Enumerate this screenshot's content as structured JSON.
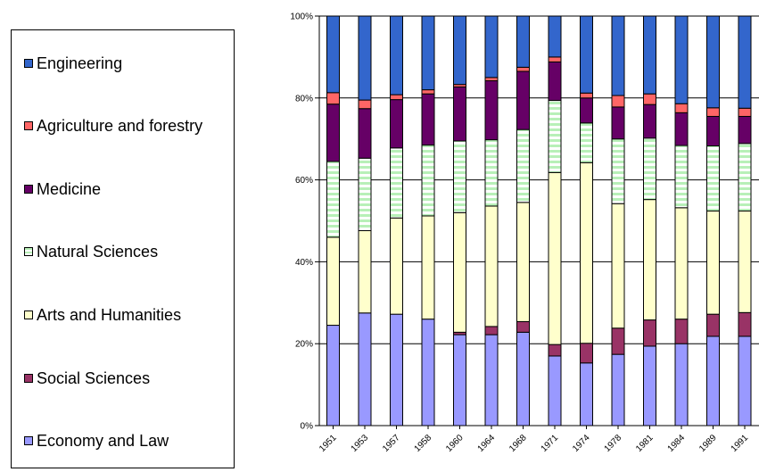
{
  "chart_data": {
    "type": "bar",
    "stacked": true,
    "percent": true,
    "categories": [
      "1951",
      "1953",
      "1957",
      "1958",
      "1960",
      "1964",
      "1968",
      "1971",
      "1974",
      "1978",
      "1981",
      "1984",
      "1989",
      "1991"
    ],
    "series": [
      {
        "name": "Economy and Law",
        "color": "#9999ff",
        "pattern": "solid",
        "values": [
          24.5,
          27.5,
          27.2,
          26.0,
          22.2,
          22.2,
          22.8,
          17.0,
          15.3,
          17.4,
          19.4,
          20.0,
          21.8,
          21.8
        ]
      },
      {
        "name": "Social Sciences",
        "color": "#993366",
        "pattern": "solid",
        "values": [
          0.0,
          0.0,
          0.0,
          0.0,
          0.6,
          2.0,
          2.6,
          2.8,
          4.8,
          6.4,
          6.4,
          6.0,
          5.4,
          5.8
        ]
      },
      {
        "name": "Arts and Humanities",
        "color": "#ffffcc",
        "pattern": "solid",
        "values": [
          21.5,
          20.1,
          23.5,
          25.2,
          29.2,
          29.4,
          29.1,
          42.0,
          44.1,
          30.4,
          29.4,
          27.2,
          25.2,
          24.8
        ]
      },
      {
        "name": "Natural Sciences",
        "color": "#ccffcc",
        "pattern": "stripes",
        "values": [
          18.5,
          17.7,
          17.1,
          17.3,
          17.5,
          16.2,
          17.8,
          17.6,
          9.7,
          15.8,
          15.0,
          15.2,
          15.9,
          16.5
        ]
      },
      {
        "name": "Medicine",
        "color": "#660066",
        "pattern": "solid",
        "values": [
          14.0,
          12.1,
          11.8,
          12.5,
          13.2,
          14.4,
          14.2,
          9.4,
          6.1,
          7.8,
          8.2,
          8.0,
          7.2,
          6.6
        ]
      },
      {
        "name": "Agriculture and forestry",
        "color": "#ff6666",
        "pattern": "solid",
        "values": [
          2.8,
          2.1,
          1.2,
          1.0,
          0.6,
          0.8,
          1.0,
          1.2,
          1.2,
          2.8,
          2.6,
          2.2,
          2.1,
          2.0
        ]
      },
      {
        "name": "Engineering",
        "color": "#3366cc",
        "pattern": "solid",
        "values": [
          18.7,
          20.5,
          19.2,
          18.0,
          16.7,
          15.0,
          12.5,
          10.0,
          18.8,
          19.4,
          19.0,
          21.4,
          22.4,
          22.5
        ]
      }
    ],
    "legend_order": [
      "Engineering",
      "Agriculture and forestry",
      "Medicine",
      "Natural Sciences",
      "Arts and Humanities",
      "Social Sciences",
      "Economy and Law"
    ],
    "legend_position": "left",
    "y_ticks": [
      "0%",
      "20%",
      "40%",
      "60%",
      "80%",
      "100%"
    ],
    "ylim": [
      0,
      100
    ],
    "grid": true,
    "title": "",
    "xlabel": "",
    "ylabel": ""
  }
}
